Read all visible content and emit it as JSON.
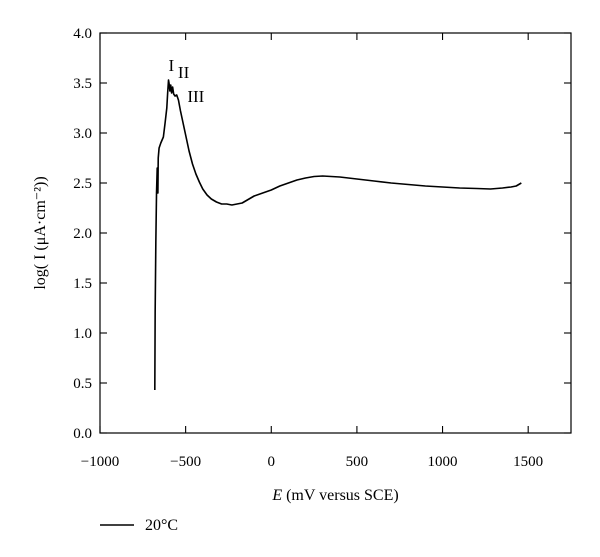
{
  "chart_data": {
    "type": "line",
    "title": "",
    "xlabel_symbol": "E",
    "xlabel_rest": " (mV versus SCE)",
    "ylabel": "log( I (μA·cm⁻²))",
    "xlim": [
      -1000,
      1750
    ],
    "ylim": [
      0.0,
      4.0
    ],
    "x_ticks": [
      -1000,
      -500,
      0,
      500,
      1000,
      1500
    ],
    "y_ticks": [
      0.0,
      0.5,
      1.0,
      1.5,
      2.0,
      2.5,
      3.0,
      3.5,
      4.0
    ],
    "x_tick_labels": [
      "−1000",
      "−500",
      "0",
      "500",
      "1000",
      "1500"
    ],
    "y_tick_labels": [
      "0.0",
      "0.5",
      "1.0",
      "1.5",
      "2.0",
      "2.5",
      "3.0",
      "3.5",
      "4.0"
    ],
    "grid": false,
    "legend_position": "bottom-left",
    "annotations": [
      {
        "text": "I",
        "x": -600,
        "y": 3.62
      },
      {
        "text": "II",
        "x": -545,
        "y": 3.55
      },
      {
        "text": "III",
        "x": -490,
        "y": 3.31
      }
    ],
    "series": [
      {
        "name": "20°C",
        "color": "#000000",
        "points": [
          [
            -680,
            0.43
          ],
          [
            -678,
            1.2
          ],
          [
            -674,
            1.9
          ],
          [
            -670,
            2.4
          ],
          [
            -666,
            2.65
          ],
          [
            -662,
            2.4
          ],
          [
            -660,
            2.75
          ],
          [
            -655,
            2.85
          ],
          [
            -645,
            2.9
          ],
          [
            -630,
            2.96
          ],
          [
            -620,
            3.1
          ],
          [
            -610,
            3.25
          ],
          [
            -605,
            3.4
          ],
          [
            -600,
            3.53
          ],
          [
            -597,
            3.5
          ],
          [
            -592,
            3.42
          ],
          [
            -587,
            3.48
          ],
          [
            -582,
            3.4
          ],
          [
            -576,
            3.46
          ],
          [
            -570,
            3.39
          ],
          [
            -562,
            3.37
          ],
          [
            -552,
            3.38
          ],
          [
            -542,
            3.33
          ],
          [
            -530,
            3.22
          ],
          [
            -515,
            3.1
          ],
          [
            -500,
            2.98
          ],
          [
            -480,
            2.82
          ],
          [
            -460,
            2.69
          ],
          [
            -440,
            2.59
          ],
          [
            -420,
            2.51
          ],
          [
            -400,
            2.44
          ],
          [
            -375,
            2.38
          ],
          [
            -350,
            2.34
          ],
          [
            -320,
            2.31
          ],
          [
            -290,
            2.29
          ],
          [
            -260,
            2.29
          ],
          [
            -230,
            2.28
          ],
          [
            -200,
            2.29
          ],
          [
            -170,
            2.3
          ],
          [
            -140,
            2.33
          ],
          [
            -100,
            2.37
          ],
          [
            -50,
            2.4
          ],
          [
            0,
            2.43
          ],
          [
            50,
            2.47
          ],
          [
            100,
            2.5
          ],
          [
            150,
            2.53
          ],
          [
            200,
            2.55
          ],
          [
            250,
            2.565
          ],
          [
            300,
            2.57
          ],
          [
            350,
            2.565
          ],
          [
            400,
            2.56
          ],
          [
            500,
            2.54
          ],
          [
            600,
            2.52
          ],
          [
            700,
            2.5
          ],
          [
            800,
            2.485
          ],
          [
            900,
            2.47
          ],
          [
            1000,
            2.46
          ],
          [
            1100,
            2.45
          ],
          [
            1200,
            2.445
          ],
          [
            1280,
            2.44
          ],
          [
            1350,
            2.45
          ],
          [
            1400,
            2.46
          ],
          [
            1430,
            2.47
          ],
          [
            1460,
            2.5
          ]
        ]
      }
    ]
  }
}
